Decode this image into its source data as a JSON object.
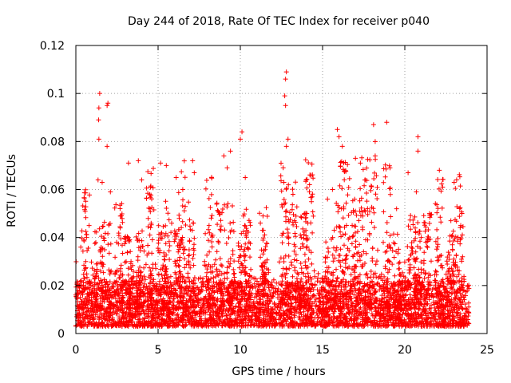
{
  "chart_data": {
    "type": "scatter",
    "title": "Day 244 of 2018, Rate Of TEC Index for receiver p040",
    "xlabel": "GPS time / hours",
    "ylabel": "ROTI / TECUs",
    "xlim": [
      0,
      25
    ],
    "ylim": [
      0,
      0.12
    ],
    "xticks": [
      0,
      5,
      10,
      15,
      20,
      25
    ],
    "xtick_labels": [
      "0",
      "5",
      "10",
      "15",
      "20",
      "25"
    ],
    "yticks": [
      0,
      0.02,
      0.04,
      0.06,
      0.08,
      0.1,
      0.12
    ],
    "ytick_labels": [
      "0",
      "0.02",
      "0.04",
      "0.06",
      "0.08",
      "0.1",
      "0.12"
    ],
    "grid": true,
    "marker": "plus",
    "color": "#ff0000",
    "sample_points": [
      [
        1.45,
        0.1
      ],
      [
        1.4,
        0.094
      ],
      [
        1.38,
        0.089
      ],
      [
        1.4,
        0.081
      ],
      [
        1.95,
        0.096
      ],
      [
        1.9,
        0.095
      ],
      [
        1.9,
        0.078
      ],
      [
        1.35,
        0.064
      ],
      [
        1.6,
        0.063
      ],
      [
        2.1,
        0.059
      ],
      [
        3.2,
        0.071
      ],
      [
        3.8,
        0.072
      ],
      [
        4.0,
        0.064
      ],
      [
        5.15,
        0.071
      ],
      [
        5.5,
        0.07
      ],
      [
        6.1,
        0.065
      ],
      [
        6.5,
        0.06
      ],
      [
        7.1,
        0.072
      ],
      [
        7.2,
        0.067
      ],
      [
        9.0,
        0.074
      ],
      [
        9.2,
        0.069
      ],
      [
        9.4,
        0.076
      ],
      [
        10.1,
        0.084
      ],
      [
        10.0,
        0.081
      ],
      [
        10.3,
        0.065
      ],
      [
        12.8,
        0.109
      ],
      [
        12.75,
        0.106
      ],
      [
        12.7,
        0.099
      ],
      [
        12.75,
        0.095
      ],
      [
        12.9,
        0.081
      ],
      [
        12.8,
        0.078
      ],
      [
        12.65,
        0.063
      ],
      [
        13.2,
        0.058
      ],
      [
        14.0,
        0.064
      ],
      [
        14.2,
        0.059
      ],
      [
        15.3,
        0.056
      ],
      [
        15.6,
        0.06
      ],
      [
        15.9,
        0.085
      ],
      [
        16.0,
        0.082
      ],
      [
        16.2,
        0.078
      ],
      [
        17.0,
        0.073
      ],
      [
        17.3,
        0.071
      ],
      [
        17.6,
        0.064
      ],
      [
        18.1,
        0.087
      ],
      [
        18.2,
        0.08
      ],
      [
        18.2,
        0.074
      ],
      [
        18.9,
        0.088
      ],
      [
        19.1,
        0.069
      ],
      [
        20.2,
        0.067
      ],
      [
        20.8,
        0.082
      ],
      [
        20.8,
        0.076
      ],
      [
        20.7,
        0.059
      ],
      [
        21.5,
        0.05
      ],
      [
        22.1,
        0.068
      ],
      [
        22.3,
        0.061
      ],
      [
        23.0,
        0.063
      ],
      [
        23.4,
        0.045
      ],
      [
        0.3,
        0.036
      ],
      [
        0.6,
        0.03
      ],
      [
        2.7,
        0.044
      ],
      [
        4.5,
        0.041
      ],
      [
        8.1,
        0.045
      ],
      [
        11.4,
        0.043
      ],
      [
        13.9,
        0.05
      ],
      [
        16.8,
        0.045
      ],
      [
        19.5,
        0.052
      ],
      [
        21.0,
        0.04
      ],
      [
        22.8,
        0.047
      ]
    ],
    "noise_band": {
      "x_range": [
        0,
        23.9
      ],
      "baseline_typical": [
        0.003,
        0.022
      ],
      "spike_hours": [
        0.6,
        1.4,
        1.9,
        2.6,
        3.2,
        3.9,
        4.5,
        5.2,
        5.6,
        6.2,
        6.5,
        7.0,
        8.1,
        8.8,
        9.4,
        10.1,
        10.4,
        11.4,
        12.7,
        13.2,
        13.8,
        14.2,
        15.4,
        15.9,
        16.4,
        17.0,
        17.5,
        18.1,
        18.9,
        19.5,
        20.4,
        20.8,
        21.4,
        22.1,
        22.8,
        23.3
      ]
    }
  }
}
